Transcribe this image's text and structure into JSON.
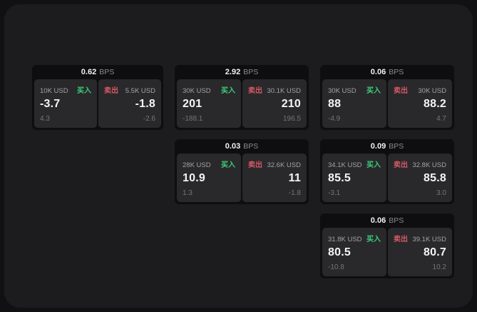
{
  "page": {
    "bg_outer": "#111113",
    "bg_panel": "#1c1c1e",
    "card_bg": "#0e0e10",
    "tile_bg": "#29292c"
  },
  "labels": {
    "bps_unit": "BPS",
    "buy": "买入",
    "sell": "卖出"
  },
  "colors": {
    "buy_green": "#3dcf79",
    "sell_red": "#d95866"
  },
  "cards": [
    {
      "bps": "0.62",
      "buy": {
        "amount": "10K USD",
        "price": "-3.7",
        "sub": "4.3"
      },
      "sell": {
        "amount": "5.5K USD",
        "price": "-1.8",
        "sub": "-2.6"
      }
    },
    {
      "bps": "2.92",
      "buy": {
        "amount": "30K USD",
        "price": "201",
        "sub": "-188.1"
      },
      "sell": {
        "amount": "30.1K USD",
        "price": "210",
        "sub": "196.5"
      }
    },
    {
      "bps": "0.06",
      "buy": {
        "amount": "30K USD",
        "price": "88",
        "sub": "-4.9"
      },
      "sell": {
        "amount": "30K USD",
        "price": "88.2",
        "sub": "4.7"
      }
    },
    {
      "bps": "0.03",
      "buy": {
        "amount": "28K USD",
        "price": "10.9",
        "sub": "1.3"
      },
      "sell": {
        "amount": "32.6K USD",
        "price": "11",
        "sub": "-1.8"
      }
    },
    {
      "bps": "0.09",
      "buy": {
        "amount": "34.1K USD",
        "price": "85.5",
        "sub": "-3.1"
      },
      "sell": {
        "amount": "32.8K USD",
        "price": "85.8",
        "sub": "3.0"
      }
    },
    {
      "bps": "0.06",
      "buy": {
        "amount": "31.8K USD",
        "price": "80.5",
        "sub": "-10.8"
      },
      "sell": {
        "amount": "39.1K USD",
        "price": "80.7",
        "sub": "10.2"
      }
    }
  ]
}
